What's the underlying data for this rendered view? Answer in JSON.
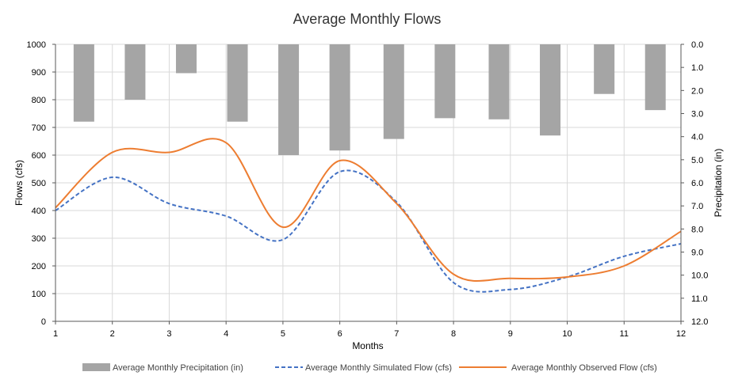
{
  "chart_data": {
    "type": "bar+line",
    "title": "Average Monthly Flows",
    "xlabel": "Months",
    "ylabel": "Flows (cfs)",
    "y2label": "Precipitation (in)",
    "x": [
      1,
      2,
      3,
      4,
      5,
      6,
      7,
      8,
      9,
      10,
      11,
      12
    ],
    "xlim": [
      1,
      12
    ],
    "ylim": [
      0,
      1000
    ],
    "y_ticks": [
      "0",
      "100",
      "200",
      "300",
      "400",
      "500",
      "600",
      "700",
      "800",
      "900",
      "1000"
    ],
    "y2lim": [
      0,
      12
    ],
    "y2_ticks": [
      "0.0",
      "1.0",
      "2.0",
      "3.0",
      "4.0",
      "5.0",
      "6.0",
      "7.0",
      "8.0",
      "9.0",
      "10.0",
      "11.0",
      "12.0"
    ],
    "y2_inverted": true,
    "grid": true,
    "legend_position": "bottom",
    "series": [
      {
        "name": "Average Monthly Precipitation (in)",
        "type": "bar",
        "axis": "secondary",
        "color": "#a5a5a5",
        "x": [
          1.5,
          2.4,
          3.3,
          4.2,
          5.1,
          6.0,
          6.95,
          7.85,
          8.8,
          9.7,
          10.65,
          11.55
        ],
        "values": [
          3.35,
          2.4,
          1.25,
          3.35,
          4.8,
          4.6,
          4.1,
          3.2,
          3.25,
          3.95,
          2.15,
          2.85
        ]
      },
      {
        "name": "Average Monthly Simulated Flow (cfs)",
        "type": "line",
        "axis": "primary",
        "color": "#4472c4",
        "dashed": true,
        "values": [
          400,
          520,
          425,
          380,
          295,
          540,
          430,
          140,
          115,
          160,
          235,
          280
        ]
      },
      {
        "name": "Average Monthly Observed Flow (cfs)",
        "type": "line",
        "axis": "primary",
        "color": "#ed7d31",
        "dashed": false,
        "values": [
          410,
          610,
          610,
          645,
          340,
          580,
          425,
          170,
          155,
          160,
          200,
          325
        ]
      }
    ]
  }
}
